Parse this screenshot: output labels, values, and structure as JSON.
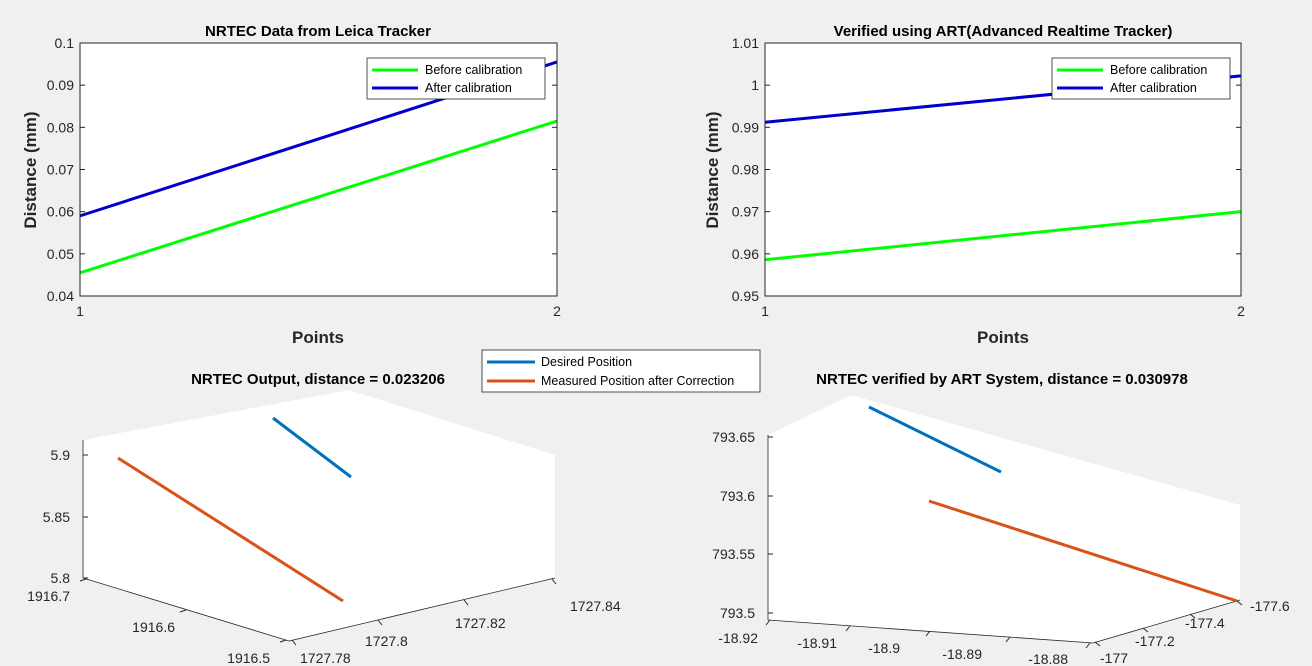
{
  "chart_data": [
    {
      "type": "line",
      "title": "NRTEC Data from Leica Tracker",
      "xlabel": "Points",
      "ylabel": "Distance (mm)",
      "x": [
        1,
        2
      ],
      "xlim": [
        1,
        2
      ],
      "ylim": [
        0.04,
        0.1
      ],
      "xticks": [
        "1",
        "2"
      ],
      "yticks": [
        "0.04",
        "0.05",
        "0.06",
        "0.07",
        "0.08",
        "0.09",
        "0.1"
      ],
      "legend_position": "top-right",
      "series": [
        {
          "name": "Before calibration",
          "color": "#00ff00",
          "values": [
            0.0455,
            0.0815
          ]
        },
        {
          "name": "After calibration",
          "color": "#0000cc",
          "values": [
            0.059,
            0.0955
          ]
        }
      ]
    },
    {
      "type": "line",
      "title": "Verified using ART(Advanced Realtime Tracker)",
      "xlabel": "Points",
      "ylabel": "Distance (mm)",
      "x": [
        1,
        2
      ],
      "xlim": [
        1,
        2
      ],
      "ylim": [
        0.95,
        1.01
      ],
      "xticks": [
        "1",
        "2"
      ],
      "yticks": [
        "0.95",
        "0.96",
        "0.97",
        "0.98",
        "0.99",
        "1",
        "1.01"
      ],
      "legend_position": "top-right",
      "series": [
        {
          "name": "Before calibration",
          "color": "#00ff00",
          "values": [
            0.9586,
            0.97
          ]
        },
        {
          "name": "After calibration",
          "color": "#0000cc",
          "values": [
            0.9912,
            1.0022
          ]
        }
      ]
    },
    {
      "type": "line3d",
      "title": "NRTEC Output, distance = 0.023206",
      "legend_position": "top-right",
      "x_ticks": [
        "1916.7",
        "1916.6",
        "1916.5"
      ],
      "y_ticks": [
        "1727.78",
        "1727.8",
        "1727.82",
        "1727.84"
      ],
      "z_ticks": [
        "5.8",
        "5.85",
        "5.9"
      ],
      "zlim": [
        5.8,
        5.92
      ],
      "series": [
        {
          "name": "Desired Position",
          "color": "#0072bd"
        },
        {
          "name": "Measured Position after Correction",
          "color": "#d95319"
        }
      ]
    },
    {
      "type": "line3d",
      "title": "NRTEC verified by ART System, distance = 0.030978",
      "x_ticks": [
        "-18.92",
        "-18.91",
        "-18.9",
        "-18.89",
        "-18.88"
      ],
      "y_ticks": [
        "-177",
        "-177.2",
        "-177.4",
        "-177.6"
      ],
      "z_ticks": [
        "793.5",
        "793.55",
        "793.6",
        "793.65"
      ],
      "zlim": [
        793.5,
        793.67
      ],
      "series": [
        {
          "name": "Desired Position",
          "color": "#0072bd"
        },
        {
          "name": "Measured Position after Correction",
          "color": "#d95319"
        }
      ]
    }
  ]
}
